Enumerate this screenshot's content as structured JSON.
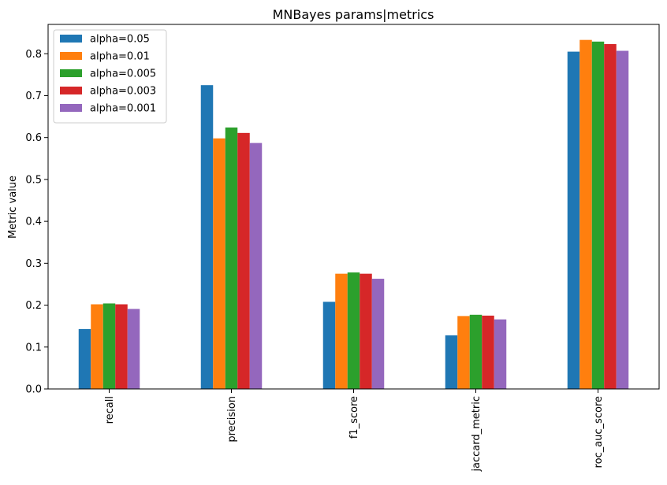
{
  "chart_data": {
    "type": "bar",
    "title": "MNBayes params|metrics",
    "xlabel": "",
    "ylabel": "Metric value",
    "categories": [
      "recall",
      "precision",
      "f1_score",
      "jaccard_metric",
      "roc_auc_score"
    ],
    "ylim": [
      0,
      0.87
    ],
    "yticks": [
      0.0,
      0.1,
      0.2,
      0.3,
      0.4,
      0.5,
      0.6,
      0.7,
      0.8
    ],
    "ytick_labels": [
      "0.0",
      "0.1",
      "0.2",
      "0.3",
      "0.4",
      "0.5",
      "0.6",
      "0.7",
      "0.8"
    ],
    "legend_position": "top-left",
    "grid": false,
    "series": [
      {
        "name": "alpha=0.05",
        "color": "#1f77b4",
        "values": [
          0.143,
          0.725,
          0.208,
          0.128,
          0.805
        ]
      },
      {
        "name": "alpha=0.01",
        "color": "#ff7f0e",
        "values": [
          0.202,
          0.598,
          0.275,
          0.174,
          0.833
        ]
      },
      {
        "name": "alpha=0.005",
        "color": "#2ca02c",
        "values": [
          0.204,
          0.624,
          0.278,
          0.177,
          0.829
        ]
      },
      {
        "name": "alpha=0.003",
        "color": "#d62728",
        "values": [
          0.202,
          0.611,
          0.275,
          0.175,
          0.823
        ]
      },
      {
        "name": "alpha=0.001",
        "color": "#9467bd",
        "values": [
          0.191,
          0.587,
          0.263,
          0.166,
          0.807
        ]
      }
    ]
  }
}
